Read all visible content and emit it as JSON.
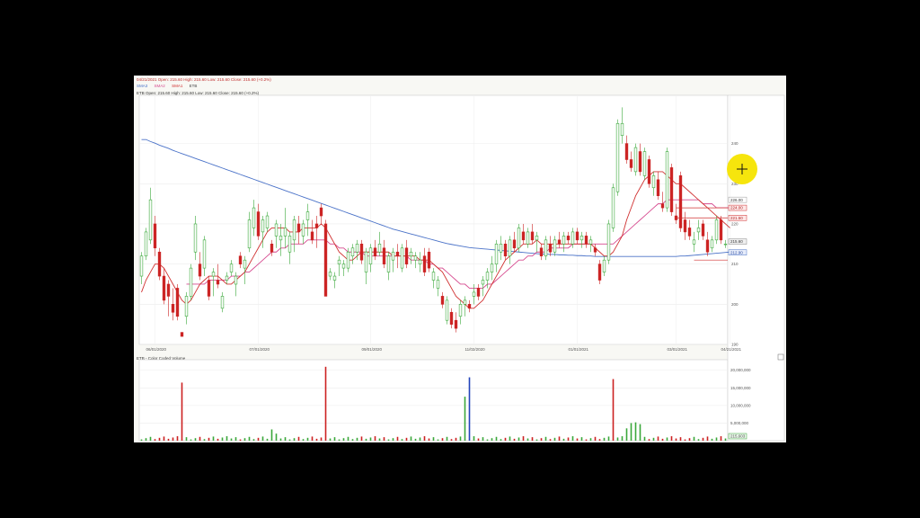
{
  "header": {
    "line1": "04/21/2021 Open: 215.60 High: 215.60 Low: 215.60 Close: 215.60 (+0.2%)",
    "legend": [
      {
        "label": "SMA3",
        "color": "#4a72c8"
      },
      {
        "label": "SMA2",
        "color": "#d64a8f"
      },
      {
        "label": "SMA1",
        "color": "#d03030"
      },
      {
        "label": "ETB",
        "color": "#444444"
      }
    ],
    "line3": "ETB Open: 215.60 High: 215.60 Low: 215.60 Close: 215.60 (+0.2%)",
    "volume_title": "ETB - Color Coded Volume"
  },
  "colors": {
    "up": "#3aa83a",
    "down": "#cc2222",
    "sma_long": "#4a72c8",
    "sma_mid": "#d64a8f",
    "sma_short": "#d03030",
    "volume_blue": "#2244bb"
  },
  "chart_data": [
    {
      "type": "candlestick",
      "ylim": [
        190,
        252
      ],
      "ytick_labels": [
        "240",
        "230",
        "220",
        "210",
        "200",
        "190"
      ],
      "yticks": [
        240,
        230,
        220,
        210,
        200,
        190
      ],
      "price_tags": [
        {
          "value": 226.0,
          "text": "226.00",
          "style": "plain"
        },
        {
          "value": 224.0,
          "text": "224.00",
          "style": "red"
        },
        {
          "value": 221.5,
          "text": "221.50",
          "style": "red"
        },
        {
          "value": 215.6,
          "text": "215.60",
          "style": "gray"
        },
        {
          "value": 212.9,
          "text": "212.90",
          "style": "blue"
        }
      ],
      "date_labels": [
        "06/01/2020",
        "07/01/2020",
        "09/01/2020",
        "11/02/2020",
        "01/01/2021",
        "03/01/2021",
        "04/21/2021"
      ],
      "date_label_index": [
        3,
        26,
        51,
        74,
        97,
        119,
        131
      ],
      "candles": [
        [
          207,
          213,
          205,
          212
        ],
        [
          212,
          219,
          211,
          218
        ],
        [
          216,
          229,
          215,
          226
        ],
        [
          220,
          222,
          212,
          214
        ],
        [
          213,
          214,
          206,
          207
        ],
        [
          207,
          209,
          200,
          201
        ],
        [
          205,
          206,
          197,
          202
        ],
        [
          200,
          204,
          196,
          198
        ],
        [
          204,
          205,
          196,
          197
        ],
        [
          193,
          193,
          192,
          192
        ],
        [
          197,
          203,
          195,
          202
        ],
        [
          202,
          210,
          201,
          209
        ],
        [
          213,
          222,
          211,
          220
        ],
        [
          210,
          213,
          206,
          207
        ],
        [
          209,
          217,
          207,
          216
        ],
        [
          206,
          207,
          201,
          202
        ],
        [
          207,
          209,
          202,
          208
        ],
        [
          206,
          210,
          204,
          205
        ],
        [
          199,
          203,
          198,
          202
        ],
        [
          206,
          208,
          205,
          207
        ],
        [
          208,
          211,
          207,
          210
        ],
        [
          205,
          208,
          202,
          207
        ],
        [
          212,
          213,
          209,
          210
        ],
        [
          209,
          212,
          205,
          211
        ],
        [
          214,
          223,
          213,
          221
        ],
        [
          219,
          226,
          217,
          224
        ],
        [
          223,
          225,
          216,
          217
        ],
        [
          218,
          222,
          214,
          221
        ],
        [
          219,
          223,
          218,
          222
        ],
        [
          215,
          216,
          212,
          213
        ],
        [
          217,
          221,
          214,
          220
        ],
        [
          216,
          220,
          212,
          217
        ],
        [
          217,
          224,
          214,
          219
        ],
        [
          213,
          218,
          210,
          217
        ],
        [
          216,
          222,
          213,
          221
        ],
        [
          220,
          222,
          215,
          218
        ],
        [
          217,
          221,
          215,
          220
        ],
        [
          221,
          225,
          217,
          223
        ],
        [
          218,
          221,
          215,
          216
        ],
        [
          220,
          222,
          214,
          219
        ],
        [
          224,
          225,
          220,
          222
        ],
        [
          220,
          221,
          202,
          202
        ],
        [
          207,
          209,
          206,
          208
        ],
        [
          206,
          208,
          204,
          207
        ],
        [
          210,
          212,
          207,
          211
        ],
        [
          209,
          211,
          207,
          210
        ],
        [
          209,
          214,
          208,
          213
        ],
        [
          212,
          215,
          210,
          214
        ],
        [
          213,
          216,
          211,
          215
        ],
        [
          215,
          216,
          210,
          211
        ],
        [
          208,
          214,
          205,
          213
        ],
        [
          210,
          215,
          208,
          214
        ],
        [
          214,
          216,
          211,
          212
        ],
        [
          213,
          218,
          212,
          215
        ],
        [
          214,
          216,
          209,
          210
        ],
        [
          208,
          213,
          206,
          212
        ],
        [
          211,
          214,
          208,
          213
        ],
        [
          213,
          215,
          209,
          212
        ],
        [
          209,
          215,
          208,
          214
        ],
        [
          214,
          216,
          209,
          210
        ],
        [
          212,
          214,
          210,
          213
        ],
        [
          211,
          213,
          209,
          212
        ],
        [
          210,
          213,
          208,
          211
        ],
        [
          212,
          214,
          207,
          208
        ],
        [
          213,
          214,
          208,
          209
        ],
        [
          206,
          209,
          204,
          208
        ],
        [
          204,
          207,
          202,
          206
        ],
        [
          202,
          203,
          199,
          200
        ],
        [
          196,
          202,
          195,
          201
        ],
        [
          198,
          199,
          194,
          195
        ],
        [
          196,
          198,
          193,
          194
        ],
        [
          197,
          201,
          195,
          200
        ],
        [
          200,
          202,
          197,
          201
        ],
        [
          200,
          201,
          198,
          199
        ],
        [
          202,
          205,
          200,
          203
        ],
        [
          204,
          205,
          201,
          202
        ],
        [
          205,
          207,
          202,
          206
        ],
        [
          206,
          209,
          204,
          208
        ],
        [
          208,
          212,
          206,
          210
        ],
        [
          210,
          216,
          208,
          215
        ],
        [
          213,
          217,
          211,
          215
        ],
        [
          215,
          216,
          211,
          212
        ],
        [
          212,
          217,
          210,
          216
        ],
        [
          216,
          218,
          213,
          214
        ],
        [
          214,
          220,
          213,
          219
        ],
        [
          218,
          220,
          215,
          216
        ],
        [
          215,
          219,
          214,
          218
        ],
        [
          218,
          220,
          215,
          216
        ],
        [
          216,
          218,
          213,
          217
        ],
        [
          214,
          215,
          211,
          212
        ],
        [
          212,
          217,
          211,
          216
        ],
        [
          215,
          217,
          212,
          213
        ],
        [
          213,
          217,
          212,
          216
        ],
        [
          216,
          218,
          214,
          215
        ],
        [
          215,
          218,
          213,
          217
        ],
        [
          217,
          218,
          215,
          216
        ],
        [
          215,
          219,
          214,
          218
        ],
        [
          218,
          219,
          215,
          216
        ],
        [
          216,
          218,
          214,
          217
        ],
        [
          217,
          218,
          214,
          215
        ],
        [
          215,
          217,
          213,
          216
        ],
        [
          214,
          215,
          212,
          213
        ],
        [
          210,
          211,
          205,
          206
        ],
        [
          208,
          212,
          207,
          211
        ],
        [
          211,
          221,
          210,
          220
        ],
        [
          219,
          230,
          218,
          229
        ],
        [
          228,
          246,
          227,
          245
        ],
        [
          242,
          249,
          240,
          245
        ],
        [
          240,
          242,
          235,
          236
        ],
        [
          236,
          238,
          233,
          234
        ],
        [
          233,
          240,
          232,
          239
        ],
        [
          238,
          240,
          232,
          233
        ],
        [
          232,
          239,
          231,
          238
        ],
        [
          236,
          237,
          229,
          230
        ],
        [
          229,
          233,
          227,
          232
        ],
        [
          231,
          233,
          226,
          227
        ],
        [
          225,
          228,
          223,
          224
        ],
        [
          224,
          239,
          223,
          238
        ],
        [
          234,
          235,
          222,
          223
        ],
        [
          222,
          225,
          220,
          221
        ],
        [
          232,
          233,
          218,
          219
        ],
        [
          221,
          223,
          216,
          218
        ],
        [
          219,
          221,
          216,
          217
        ],
        [
          215,
          218,
          213,
          216
        ],
        [
          218,
          221,
          216,
          219
        ],
        [
          220,
          221,
          216,
          217
        ],
        [
          216,
          218,
          212,
          213
        ],
        [
          214,
          217,
          213,
          216
        ],
        [
          216,
          222,
          215,
          221
        ],
        [
          221,
          222,
          215,
          216
        ],
        [
          215,
          216,
          214,
          215
        ]
      ],
      "sma_short": [
        203,
        206,
        208,
        210,
        210,
        209,
        207,
        205,
        203,
        201,
        200,
        201,
        203,
        205,
        206,
        207,
        207,
        207,
        206,
        205,
        205,
        206,
        207,
        208,
        210,
        212,
        214,
        216,
        218,
        219,
        219,
        219,
        219,
        218,
        218,
        218,
        219,
        219,
        219,
        219,
        220,
        219,
        217,
        215,
        213,
        212,
        211,
        211,
        212,
        213,
        213,
        213,
        213,
        213,
        213,
        213,
        212,
        212,
        212,
        212,
        212,
        212,
        211,
        211,
        211,
        210,
        209,
        208,
        206,
        204,
        202,
        201,
        200,
        199,
        199,
        200,
        201,
        203,
        205,
        207,
        209,
        211,
        212,
        213,
        214,
        215,
        215,
        215,
        216,
        215,
        215,
        215,
        215,
        215,
        215,
        215,
        215,
        215,
        215,
        215,
        215,
        214,
        213,
        212,
        212,
        213,
        215,
        217,
        221,
        224,
        227,
        229,
        231,
        232,
        233,
        233,
        233,
        232,
        231,
        230,
        230,
        229,
        228,
        227,
        226,
        225,
        224,
        223,
        222,
        221,
        220,
        219
      ],
      "sma_mid": [
        null,
        null,
        null,
        null,
        null,
        null,
        null,
        null,
        null,
        null,
        205,
        205,
        205,
        205,
        205,
        206,
        206,
        206,
        206,
        206,
        207,
        207,
        207,
        208,
        208,
        209,
        210,
        211,
        212,
        213,
        213,
        214,
        214,
        215,
        215,
        215,
        215,
        216,
        216,
        216,
        216,
        216,
        215,
        215,
        214,
        214,
        213,
        213,
        213,
        213,
        212,
        212,
        212,
        212,
        212,
        212,
        212,
        212,
        212,
        212,
        211,
        211,
        211,
        211,
        210,
        210,
        209,
        209,
        208,
        207,
        206,
        205,
        205,
        204,
        204,
        204,
        204,
        205,
        205,
        206,
        207,
        208,
        209,
        210,
        211,
        211,
        212,
        212,
        213,
        213,
        213,
        214,
        214,
        214,
        214,
        214,
        215,
        215,
        215,
        215,
        215,
        215,
        215,
        215,
        215,
        215,
        216,
        217,
        218,
        219,
        220,
        221,
        222,
        223,
        224,
        225,
        225,
        226,
        226,
        226,
        226,
        226,
        226,
        226,
        226,
        225,
        225,
        225,
        224,
        224,
        224,
        224
      ],
      "sma_long": [
        241,
        241,
        240.5,
        240.1,
        239.6,
        239.2,
        238.8,
        238.3,
        237.9,
        237.5,
        237.1,
        236.7,
        236.3,
        235.9,
        235.5,
        235.1,
        234.7,
        234.3,
        233.9,
        233.5,
        233.1,
        232.7,
        232.3,
        231.9,
        231.5,
        231.1,
        230.7,
        230.3,
        229.9,
        229.5,
        229.1,
        228.7,
        228.3,
        227.9,
        227.5,
        227.1,
        226.7,
        226.3,
        225.9,
        225.5,
        225.1,
        224.7,
        224.3,
        223.9,
        223.5,
        223.1,
        222.7,
        222.3,
        221.9,
        221.5,
        221.1,
        220.7,
        220.3,
        219.9,
        219.5,
        219.1,
        218.7,
        218.4,
        218.1,
        217.8,
        217.5,
        217.2,
        216.9,
        216.6,
        216.3,
        216.0,
        215.7,
        215.4,
        215.1,
        214.9,
        214.7,
        214.5,
        214.3,
        214.1,
        214.0,
        213.9,
        213.8,
        213.7,
        213.6,
        213.5,
        213.4,
        213.3,
        213.2,
        213.1,
        213.0,
        212.9,
        212.8,
        212.7,
        212.6,
        212.5,
        212.5,
        212.4,
        212.4,
        212.3,
        212.3,
        212.2,
        212.2,
        212.1,
        212.1,
        212.0,
        212.0,
        211.9,
        211.9,
        211.9,
        211.9,
        211.9,
        211.9,
        211.9,
        211.9,
        211.9,
        211.9,
        211.9,
        211.9,
        211.9,
        211.9,
        211.9,
        211.9,
        211.9,
        211.9,
        211.9,
        212.0,
        212.0,
        212.1,
        212.2,
        212.3,
        212.4,
        212.5,
        212.6,
        212.7,
        212.8,
        212.9,
        213.0
      ]
    },
    {
      "type": "bar",
      "title": "ETB - Color Coded Volume",
      "ylim": [
        0,
        23000000
      ],
      "ytick_labels": [
        "20,000,000",
        "15,000,000",
        "10,000,000",
        "5,000,000"
      ],
      "yticks": [
        20000000,
        15000000,
        10000000,
        5000000
      ],
      "last_tag": "215,603",
      "spikes": [
        {
          "index": 9,
          "value": 16500000,
          "dir": "down"
        },
        {
          "index": 41,
          "value": 21000000,
          "dir": "down"
        },
        {
          "index": 72,
          "value": 12500000,
          "dir": "up"
        },
        {
          "index": 73,
          "value": 18000000,
          "dir": "blue"
        },
        {
          "index": 105,
          "value": 17500000,
          "dir": "down"
        },
        {
          "index": 108,
          "value": 3500000,
          "dir": "up"
        },
        {
          "index": 109,
          "value": 5000000,
          "dir": "up"
        },
        {
          "index": 110,
          "value": 5200000,
          "dir": "up"
        },
        {
          "index": 111,
          "value": 4700000,
          "dir": "up"
        },
        {
          "index": 29,
          "value": 3200000,
          "dir": "up"
        },
        {
          "index": 30,
          "value": 2000000,
          "dir": "up"
        }
      ],
      "base_volume": 900000
    }
  ]
}
